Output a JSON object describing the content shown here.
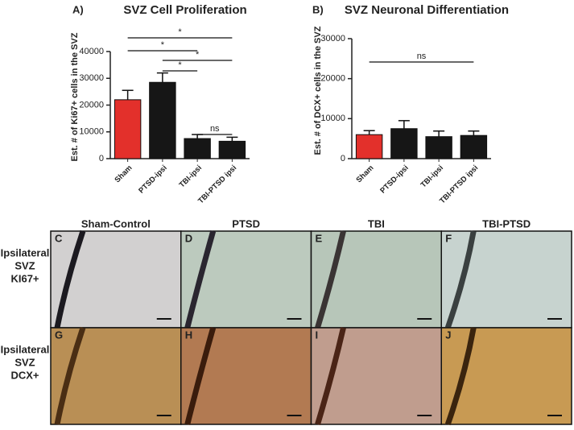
{
  "chart_data": [
    {
      "type": "bar",
      "panel": "A)",
      "title": "SVZ Cell Proliferation",
      "y_label": "Est. # of Ki67+ cells in the SVZ",
      "categories": [
        "Sham",
        "PTSD-ipsi",
        "TBI-ipsi",
        "TBI-PTSD ipsi"
      ],
      "values": [
        22000,
        28500,
        7500,
        6500
      ],
      "errors": [
        3500,
        3500,
        1500,
        1500
      ],
      "colors": [
        "#e3302b",
        "#161616",
        "#161616",
        "#161616"
      ],
      "ylim": [
        0,
        40000
      ],
      "yticks": [
        0,
        10000,
        20000,
        30000,
        40000
      ],
      "annotations": [
        "*",
        "*",
        "*",
        "*",
        "ns"
      ]
    },
    {
      "type": "bar",
      "panel": "B)",
      "title": "SVZ Neuronal Differentiation",
      "y_label": "Est. # of DCX+ cells in the SVZ",
      "categories": [
        "Sham",
        "PTSD-ipsi",
        "TBI-ipsi",
        "TBI-PTSD ipsi"
      ],
      "values": [
        6000,
        7500,
        5500,
        5800
      ],
      "errors": [
        1000,
        2000,
        1400,
        1100
      ],
      "colors": [
        "#e3302b",
        "#161616",
        "#161616",
        "#161616"
      ],
      "ylim": [
        0,
        30000
      ],
      "yticks": [
        0,
        10000,
        20000,
        30000
      ],
      "annotations": [
        "ns"
      ]
    }
  ],
  "micrographs": {
    "columns": [
      "Sham-Control",
      "PTSD",
      "TBI",
      "TBI-PTSD"
    ],
    "rows": [
      {
        "label": [
          "Ipsilateral",
          "SVZ",
          "KI67+"
        ],
        "panels": [
          "C",
          "D",
          "E",
          "F"
        ]
      },
      {
        "label": [
          "Ipsilateral",
          "SVZ",
          "DCX+"
        ],
        "panels": [
          "G",
          "H",
          "I",
          "J"
        ]
      }
    ]
  }
}
